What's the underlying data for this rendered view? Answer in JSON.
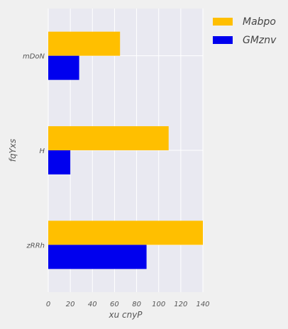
{
  "chart_data": {
    "type": "bar",
    "orientation": "horizontal",
    "categories": [
      "mDoN",
      "H",
      "zRRh"
    ],
    "series": [
      {
        "name": "Mabpo",
        "values": [
          65,
          109,
          140
        ],
        "color": "#FFBF00"
      },
      {
        "name": "GMznv",
        "values": [
          28,
          20,
          89
        ],
        "color": "#0000EE"
      }
    ],
    "xlabel": "xu cnyP",
    "ylabel": "fqYxs",
    "xlim": [
      0,
      140
    ],
    "xticks": [
      "0",
      "20",
      "40",
      "60",
      "80",
      "100",
      "120",
      "140"
    ],
    "grid": true,
    "legend_position": "top-right",
    "colors": {
      "plot_background": "#E9E9F1",
      "figure_background": "#F0F0F0",
      "grid": "#FFFFFF"
    }
  }
}
